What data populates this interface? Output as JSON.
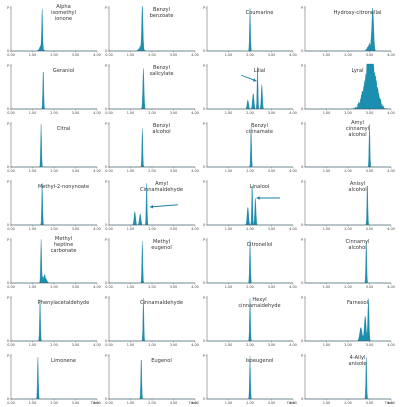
{
  "colors": {
    "trace": "#1a8fb0",
    "arrow": "#1a7ea6",
    "axis": "#555555"
  },
  "chart_data": [
    {
      "type": "area",
      "title": "Alpha isomethyl ionone",
      "x_ticks": [
        "0.00",
        "1.00",
        "2.00",
        "3.00",
        "4.00"
      ],
      "y_ticks": [
        "0",
        "P"
      ],
      "xlim": [
        0,
        4
      ],
      "peaks": [
        {
          "x": 1.45,
          "h": 0.88,
          "w": 0.03
        }
      ],
      "noise": [
        {
          "x": 1.4,
          "h": 0.12
        }
      ]
    },
    {
      "type": "area",
      "title": "Benzyl benzoate",
      "x_ticks": [
        "0.00",
        "1.00",
        "2.00",
        "3.00",
        "4.00"
      ],
      "y_ticks": [
        "0",
        "P"
      ],
      "xlim": [
        0,
        4
      ],
      "peaks": [
        {
          "x": 1.55,
          "h": 0.95,
          "w": 0.04
        }
      ],
      "noise": [
        {
          "x": 1.5,
          "h": 0.15
        }
      ]
    },
    {
      "type": "area",
      "title": "Coumarine",
      "x_ticks": [
        "1.00",
        "2.00",
        "3.00",
        "4.00"
      ],
      "y_ticks": [
        "0",
        "P"
      ],
      "xlim": [
        0,
        4
      ],
      "peaks": [
        {
          "x": 2.0,
          "h": 0.95,
          "w": 0.03
        }
      ],
      "noise": []
    },
    {
      "type": "area",
      "title": "Hydroxy-citronellal",
      "x_ticks": [
        "1.00",
        "2.00",
        "3.00",
        "4.00"
      ],
      "y_ticks": [
        "0",
        "P"
      ],
      "xlim": [
        0,
        4
      ],
      "peaks": [
        {
          "x": 3.15,
          "h": 0.92,
          "w": 0.06
        }
      ],
      "noise": [
        {
          "x": 3.0,
          "h": 0.2
        }
      ]
    },
    {
      "type": "area",
      "title": "Geraniol",
      "x_ticks": [
        "0.00",
        "1.00",
        "2.00",
        "3.00",
        "4.00"
      ],
      "y_ticks": [
        "0",
        "P"
      ],
      "xlim": [
        0,
        4
      ],
      "peaks": [
        {
          "x": 1.5,
          "h": 0.9,
          "w": 0.03
        }
      ],
      "noise": []
    },
    {
      "type": "area",
      "title": "Benzyl salicylate",
      "x_ticks": [
        "0.00",
        "1.00",
        "2.00",
        "3.00",
        "4.00"
      ],
      "y_ticks": [
        "0",
        "P"
      ],
      "xlim": [
        0,
        4
      ],
      "peaks": [
        {
          "x": 1.6,
          "h": 0.9,
          "w": 0.04
        }
      ],
      "noise": []
    },
    {
      "type": "area",
      "title": "Lilial",
      "x_ticks": [
        "1.00",
        "2.00",
        "3.00",
        "4.00"
      ],
      "y_ticks": [
        "0",
        "P"
      ],
      "xlim": [
        0,
        4
      ],
      "peaks": [
        {
          "x": 1.9,
          "h": 0.2,
          "w": 0.05
        },
        {
          "x": 2.15,
          "h": 0.35,
          "w": 0.05
        },
        {
          "x": 2.35,
          "h": 0.95,
          "w": 0.03
        },
        {
          "x": 2.55,
          "h": 0.55,
          "w": 0.04
        }
      ],
      "noise": [],
      "arrow": {
        "from": [
          1.6,
          0.75
        ],
        "to": [
          2.3,
          0.62
        ]
      }
    },
    {
      "type": "area",
      "title": "Lyral",
      "x_ticks": [
        "1.00",
        "2.00",
        "3.00",
        "4.00"
      ],
      "y_ticks": [
        "0",
        "P"
      ],
      "xlim": [
        0,
        4
      ],
      "peaks": [
        {
          "x": 2.85,
          "h": 0.5,
          "w": 0.25
        },
        {
          "x": 3.05,
          "h": 0.98,
          "w": 0.15
        },
        {
          "x": 3.3,
          "h": 0.4,
          "w": 0.2
        }
      ],
      "noise": []
    },
    {
      "type": "area",
      "title": "Citral",
      "x_ticks": [
        "0.00",
        "1.00",
        "2.00",
        "3.00",
        "4.00"
      ],
      "y_ticks": [
        "0",
        "P"
      ],
      "xlim": [
        0,
        4
      ],
      "peaks": [
        {
          "x": 1.4,
          "h": 0.95,
          "w": 0.03
        }
      ],
      "noise": []
    },
    {
      "type": "area",
      "title": "Benzyl alcohol",
      "x_ticks": [
        "0.00",
        "1.00",
        "2.00",
        "3.00",
        "4.00"
      ],
      "y_ticks": [
        "0",
        "P"
      ],
      "xlim": [
        0,
        4
      ],
      "peaks": [
        {
          "x": 1.55,
          "h": 0.88,
          "w": 0.03
        }
      ],
      "noise": []
    },
    {
      "type": "area",
      "title": "Benzyl cinnamate",
      "x_ticks": [
        "1.00",
        "2.00",
        "3.00",
        "4.00"
      ],
      "y_ticks": [
        "0",
        "P"
      ],
      "xlim": [
        0,
        4
      ],
      "peaks": [
        {
          "x": 2.05,
          "h": 0.9,
          "w": 0.03
        }
      ],
      "noise": []
    },
    {
      "type": "area",
      "title": "Amyl cinnamyl alcohol",
      "x_ticks": [
        "1.00",
        "2.00",
        "3.00",
        "4.00"
      ],
      "y_ticks": [
        "0",
        "P"
      ],
      "xlim": [
        0,
        4
      ],
      "peaks": [
        {
          "x": 3.0,
          "h": 0.95,
          "w": 0.03
        }
      ],
      "noise": []
    },
    {
      "type": "area",
      "title": "Methyl-2-nonynoate",
      "x_ticks": [
        "0.00",
        "1.00",
        "2.00",
        "3.00",
        "4.00"
      ],
      "y_ticks": [
        "0",
        "P"
      ],
      "xlim": [
        0,
        4
      ],
      "peaks": [
        {
          "x": 1.45,
          "h": 0.95,
          "w": 0.03
        }
      ],
      "noise": []
    },
    {
      "type": "area",
      "title": "Amyl Cinnamaldehyde",
      "x_ticks": [
        "0.00",
        "1.00",
        "2.00",
        "3.00",
        "4.00"
      ],
      "y_ticks": [
        "0",
        "P"
      ],
      "xlim": [
        0,
        4
      ],
      "peaks": [
        {
          "x": 1.2,
          "h": 0.3,
          "w": 0.05
        },
        {
          "x": 1.45,
          "h": 0.25,
          "w": 0.05
        },
        {
          "x": 1.75,
          "h": 0.95,
          "w": 0.03
        }
      ],
      "noise": [],
      "arrow": {
        "from": [
          3.2,
          0.45
        ],
        "to": [
          1.9,
          0.4
        ]
      }
    },
    {
      "type": "area",
      "title": "Linalool",
      "x_ticks": [
        "1.00",
        "2.00",
        "3.00",
        "4.00"
      ],
      "y_ticks": [
        "0",
        "P"
      ],
      "xlim": [
        0,
        4
      ],
      "peaks": [
        {
          "x": 1.9,
          "h": 0.4,
          "w": 0.05
        },
        {
          "x": 2.1,
          "h": 0.95,
          "w": 0.03
        },
        {
          "x": 2.25,
          "h": 0.6,
          "w": 0.04
        }
      ],
      "noise": [],
      "arrow": {
        "from": [
          3.4,
          0.6
        ],
        "to": [
          2.3,
          0.6
        ]
      }
    },
    {
      "type": "area",
      "title": "Anisyl alcohol",
      "x_ticks": [
        "1.00",
        "2.00",
        "3.00",
        "4.00"
      ],
      "y_ticks": [
        "0",
        "P"
      ],
      "xlim": [
        0,
        4
      ],
      "peaks": [
        {
          "x": 2.9,
          "h": 0.95,
          "w": 0.03
        }
      ],
      "noise": []
    },
    {
      "type": "area",
      "title": "Methyl heptine carbonate",
      "x_ticks": [
        "0.00",
        "1.00",
        "2.00",
        "3.00",
        "4.00"
      ],
      "y_ticks": [
        "0",
        "P"
      ],
      "xlim": [
        0,
        4
      ],
      "peaks": [
        {
          "x": 1.4,
          "h": 0.95,
          "w": 0.03
        }
      ],
      "noise": [
        {
          "x": 1.55,
          "h": 0.2
        }
      ]
    },
    {
      "type": "area",
      "title": "Methyl eugenol",
      "x_ticks": [
        "0.00",
        "1.00",
        "2.00",
        "3.00",
        "4.00"
      ],
      "y_ticks": [
        "0",
        "P"
      ],
      "xlim": [
        0,
        4
      ],
      "peaks": [
        {
          "x": 1.55,
          "h": 0.95,
          "w": 0.03
        }
      ],
      "noise": []
    },
    {
      "type": "area",
      "title": "Citronellol",
      "x_ticks": [
        "1.00",
        "2.00",
        "3.00",
        "4.00"
      ],
      "y_ticks": [
        "0",
        "P"
      ],
      "xlim": [
        0,
        4
      ],
      "peaks": [
        {
          "x": 2.0,
          "h": 0.95,
          "w": 0.03
        }
      ],
      "noise": []
    },
    {
      "type": "area",
      "title": "Cinnamyl alcohol",
      "x_ticks": [
        "1.00",
        "2.00",
        "3.00",
        "4.00"
      ],
      "y_ticks": [
        "0",
        "P"
      ],
      "xlim": [
        0,
        4
      ],
      "peaks": [
        {
          "x": 2.85,
          "h": 0.95,
          "w": 0.03
        }
      ],
      "noise": []
    },
    {
      "type": "area",
      "title": "Phenylacetaldehyde",
      "x_ticks": [
        "0.00",
        "1.00",
        "2.00",
        "3.00",
        "4.00"
      ],
      "y_ticks": [
        "0",
        "P"
      ],
      "xlim": [
        0,
        4
      ],
      "peaks": [
        {
          "x": 1.35,
          "h": 0.95,
          "w": 0.03
        }
      ],
      "noise": []
    },
    {
      "type": "area",
      "title": "Cinnamaldehyde",
      "x_ticks": [
        "0.00",
        "1.00",
        "2.00",
        "3.00",
        "4.00"
      ],
      "y_ticks": [
        "0",
        "P"
      ],
      "xlim": [
        0,
        4
      ],
      "peaks": [
        {
          "x": 1.6,
          "h": 0.95,
          "w": 0.03
        }
      ],
      "noise": []
    },
    {
      "type": "area",
      "title": "Hexyl cinnamaldehyde",
      "x_ticks": [
        "1.00",
        "2.00",
        "3.00",
        "4.00"
      ],
      "y_ticks": [
        "0",
        "P"
      ],
      "xlim": [
        0,
        4
      ],
      "peaks": [
        {
          "x": 2.0,
          "h": 0.95,
          "w": 0.03
        }
      ],
      "noise": []
    },
    {
      "type": "area",
      "title": "Farnesol",
      "x_ticks": [
        "1.00",
        "2.00",
        "3.00",
        "4.00"
      ],
      "y_ticks": [
        "0",
        "P"
      ],
      "xlim": [
        0,
        4
      ],
      "peaks": [
        {
          "x": 2.6,
          "h": 0.3,
          "w": 0.08
        },
        {
          "x": 2.8,
          "h": 0.55,
          "w": 0.06
        },
        {
          "x": 2.95,
          "h": 0.95,
          "w": 0.04
        }
      ],
      "noise": []
    },
    {
      "type": "area",
      "title": "Limonene",
      "x_ticks": [
        "0.00",
        "1.00",
        "2.00",
        "3.00",
        "4.00"
      ],
      "x_unit": "Time",
      "y_ticks": [
        "0",
        "P"
      ],
      "xlim": [
        0,
        4
      ],
      "peaks": [
        {
          "x": 1.25,
          "h": 0.95,
          "w": 0.03
        }
      ],
      "noise": []
    },
    {
      "type": "area",
      "title": "Eugenol",
      "x_ticks": [
        "0.00",
        "1.00",
        "2.00",
        "3.00",
        "4.00"
      ],
      "x_unit": "Time",
      "y_ticks": [
        "0",
        "P"
      ],
      "xlim": [
        0,
        4
      ],
      "peaks": [
        {
          "x": 1.5,
          "h": 0.95,
          "w": 0.03
        }
      ],
      "noise": []
    },
    {
      "type": "area",
      "title": "Isoeugenol",
      "x_ticks": [
        "1.00",
        "2.00",
        "3.00",
        "4.00"
      ],
      "x_unit": "Time",
      "y_ticks": [
        "0",
        "P"
      ],
      "xlim": [
        0,
        4
      ],
      "peaks": [
        {
          "x": 2.0,
          "h": 0.95,
          "w": 0.03
        }
      ],
      "noise": []
    },
    {
      "type": "area",
      "title": "4-Allyl anisole",
      "x_ticks": [
        "1.00",
        "2.00",
        "3.00",
        "4.00"
      ],
      "x_unit": "Time",
      "y_ticks": [
        "0",
        "P"
      ],
      "xlim": [
        0,
        4
      ],
      "peaks": [
        {
          "x": 2.85,
          "h": 0.95,
          "w": 0.03
        }
      ],
      "noise": []
    }
  ]
}
